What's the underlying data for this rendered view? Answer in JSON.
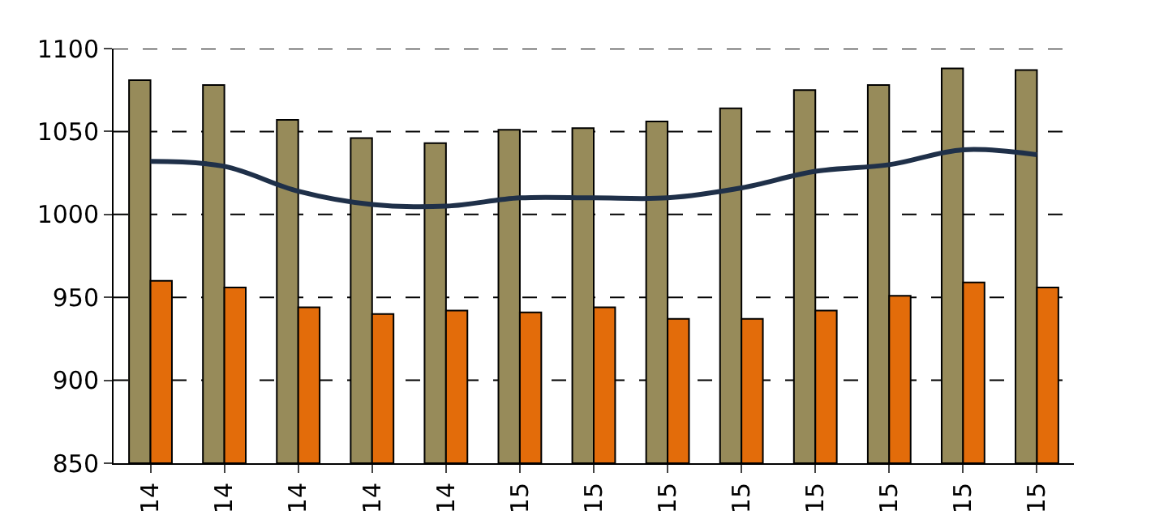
{
  "chart_data": {
    "type": "bar",
    "categories": [
      "14",
      "14",
      "14",
      "14",
      "14",
      "15",
      "15",
      "15",
      "15",
      "15",
      "15",
      "15",
      "15"
    ],
    "series": [
      {
        "color": "#978b5a",
        "values": [
          1081,
          1078,
          1057,
          1046,
          1043,
          1051,
          1052,
          1056,
          1064,
          1075,
          1078,
          1088,
          1087
        ]
      },
      {
        "color": "#e36c0a",
        "values": [
          960,
          956,
          944,
          940,
          942,
          941,
          944,
          937,
          937,
          942,
          951,
          959,
          956
        ]
      },
      {
        "type": "line",
        "color": "#1f3049",
        "values": [
          1032,
          1029,
          1014,
          1006,
          1005,
          1010,
          1010,
          1010,
          1016,
          1026,
          1030,
          1039,
          1036
        ]
      }
    ],
    "ylim": [
      850,
      1100
    ],
    "yticks": [
      850,
      900,
      950,
      1000,
      1050,
      1100
    ],
    "grid": "y",
    "marker": "none",
    "line_style": "solid"
  }
}
